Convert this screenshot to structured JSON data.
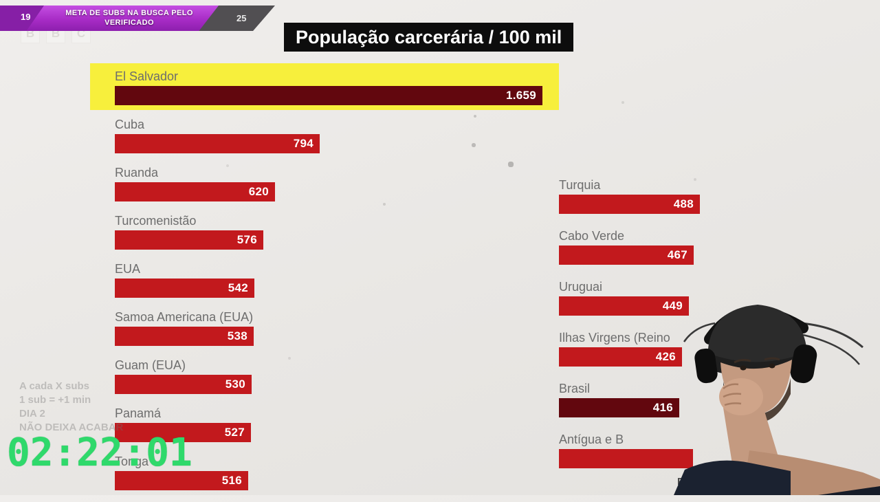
{
  "stream_overlay": {
    "sub_goal": {
      "current": "19",
      "target": "25",
      "title_line1": "META DE SUBS NA BUSCA PELO",
      "title_line2": "VERIFICADO"
    },
    "bbc_logo_letters": [
      "B",
      "B",
      "C"
    ],
    "timer": "02:22:01",
    "faint_notes": [
      "A cada X subs",
      "1 sub = +1 min",
      "DIA 2",
      "NÃO DEIXA ACABAR"
    ]
  },
  "chart_data": {
    "type": "bar",
    "orientation": "horizontal",
    "title": "População carcerária / 100 mil",
    "source": "Fonte: WPB",
    "legend": "none",
    "grid": false,
    "columns": [
      {
        "name": "left",
        "items": [
          {
            "label": "El Salvador",
            "value": 1659,
            "display": "1.659",
            "highlight": true,
            "dark": true
          },
          {
            "label": "Cuba",
            "value": 794,
            "display": "794"
          },
          {
            "label": "Ruanda",
            "value": 620,
            "display": "620"
          },
          {
            "label": "Turcomenistão",
            "value": 576,
            "display": "576"
          },
          {
            "label": "EUA",
            "value": 542,
            "display": "542"
          },
          {
            "label": "Samoa Americana (EUA)",
            "value": 538,
            "display": "538"
          },
          {
            "label": "Guam (EUA)",
            "value": 530,
            "display": "530"
          },
          {
            "label": "Panamá",
            "value": 527,
            "display": "527"
          },
          {
            "label": "Tonga",
            "value": 516,
            "display": "516"
          }
        ]
      },
      {
        "name": "right",
        "items": [
          {
            "label": "Turquia",
            "value": 488,
            "display": "488"
          },
          {
            "label": "Cabo Verde",
            "value": 467,
            "display": "467"
          },
          {
            "label": "Uruguai",
            "value": 449,
            "display": "449"
          },
          {
            "label": "Ilhas Virgens (Reino",
            "value": 426,
            "display": "426"
          },
          {
            "label": "Brasil",
            "value": 416,
            "display": "416",
            "dark": true
          },
          {
            "label": "Antígua e B",
            "value": null,
            "display": "",
            "value_hidden": true
          }
        ]
      }
    ]
  },
  "colors": {
    "bar": "#c2191d",
    "bar_dark": "#62070e",
    "highlight": "#f7ef3c",
    "label": "#6d6d6d",
    "timer": "#2fd96b",
    "subgoal_fill": "#a82cc6",
    "subgoal_track": "#514f52"
  }
}
